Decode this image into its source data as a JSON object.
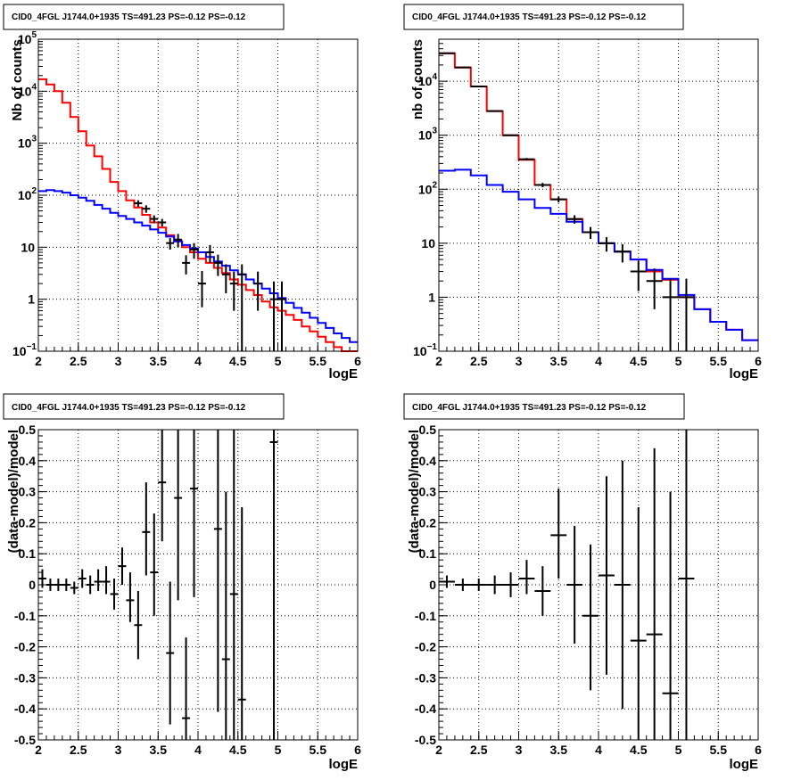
{
  "chart_data": [
    {
      "type": "line",
      "title": "CID0_4FGL J1744.0+1935 TS=491.23 PS=-0.12 PS=-0.12",
      "xlabel": "logE",
      "ylabel": "Nb of counts",
      "xlim": [
        2,
        6
      ],
      "ylim": [
        0.1,
        100000
      ],
      "yscale": "log",
      "grid": true,
      "xticks": [
        "2",
        "2.5",
        "3",
        "3.5",
        "4",
        "4.5",
        "5",
        "5.5",
        "6"
      ],
      "yticks": [
        {
          "v": 0.1,
          "t": "10",
          "sup": "−1"
        },
        {
          "v": 1,
          "t": "1"
        },
        {
          "v": 10,
          "t": "10"
        },
        {
          "v": 100,
          "t": "10",
          "sup": "2"
        },
        {
          "v": 1000,
          "t": "10",
          "sup": "3"
        },
        {
          "v": 10000,
          "t": "10",
          "sup": "4"
        },
        {
          "v": 100000,
          "t": "10",
          "sup": "5"
        }
      ],
      "bin_edges": [
        2.0,
        2.1,
        2.2,
        2.3,
        2.4,
        2.5,
        2.6,
        2.7,
        2.8,
        2.9,
        3.0,
        3.1,
        3.2,
        3.3,
        3.4,
        3.5,
        3.6,
        3.7,
        3.8,
        3.9,
        4.0,
        4.1,
        4.2,
        4.3,
        4.4,
        4.5,
        4.6,
        4.7,
        4.8,
        4.9,
        5.0,
        5.1,
        5.2,
        5.3,
        5.4,
        5.5,
        5.6,
        5.7,
        5.8,
        5.9,
        6.0
      ],
      "series": [
        {
          "color": "#ff0000",
          "kind": "hist",
          "values": [
            17000,
            13500,
            10000,
            6000,
            3200,
            1700,
            900,
            560,
            320,
            180,
            120,
            80,
            58,
            42,
            30,
            24,
            17,
            13,
            10,
            8,
            6,
            5,
            4,
            3.2,
            2.4,
            1.9,
            1.5,
            1.2,
            0.9,
            0.7,
            0.6,
            0.5,
            0.4,
            0.3,
            0.24,
            0.19,
            0.15,
            0.12,
            0.1,
            0.1
          ]
        },
        {
          "color": "#0000ff",
          "kind": "hist",
          "values": [
            120,
            125,
            120,
            112,
            100,
            90,
            78,
            65,
            55,
            46,
            40,
            35,
            30,
            26,
            22,
            19,
            16,
            13,
            11,
            9.5,
            8,
            6.5,
            5.3,
            4.4,
            3.6,
            3,
            2.4,
            2,
            1.6,
            1.3,
            1.05,
            0.85,
            0.68,
            0.55,
            0.44,
            0.35,
            0.28,
            0.22,
            0.18,
            0.15
          ]
        },
        {
          "color": "#000000",
          "kind": "points",
          "points": [
            {
              "x": 3.25,
              "y": 70,
              "xe": 0.05,
              "lo": 60,
              "hi": 80
            },
            {
              "x": 3.35,
              "y": 55,
              "xe": 0.05,
              "lo": 46,
              "hi": 64
            },
            {
              "x": 3.45,
              "y": 35,
              "xe": 0.05,
              "lo": 29,
              "hi": 41
            },
            {
              "x": 3.55,
              "y": 30,
              "xe": 0.05,
              "lo": 25,
              "hi": 35
            },
            {
              "x": 3.65,
              "y": 12,
              "xe": 0.05,
              "lo": 9,
              "hi": 15
            },
            {
              "x": 3.75,
              "y": 14,
              "xe": 0.05,
              "lo": 10,
              "hi": 18
            },
            {
              "x": 3.85,
              "y": 5,
              "xe": 0.05,
              "lo": 3,
              "hi": 7
            },
            {
              "x": 3.95,
              "y": 9,
              "xe": 0.05,
              "lo": 6,
              "hi": 12
            },
            {
              "x": 4.05,
              "y": 2,
              "xe": 0.05,
              "lo": 0.7,
              "hi": 3.5
            },
            {
              "x": 4.15,
              "y": 8,
              "xe": 0.05,
              "lo": 5,
              "hi": 11
            },
            {
              "x": 4.25,
              "y": 5,
              "xe": 0.05,
              "lo": 2.8,
              "hi": 7.2
            },
            {
              "x": 4.35,
              "y": 3,
              "xe": 0.05,
              "lo": 1.3,
              "hi": 4.7
            },
            {
              "x": 4.45,
              "y": 2,
              "xe": 0.05,
              "lo": 0.6,
              "hi": 3.4
            },
            {
              "x": 4.55,
              "y": 3,
              "xe": 0.05,
              "lo": 0.1,
              "hi": 4.7
            },
            {
              "x": 4.75,
              "y": 2,
              "xe": 0.05,
              "lo": 0.6,
              "hi": 3.4
            },
            {
              "x": 4.95,
              "y": 1,
              "xe": 0.05,
              "lo": 0.1,
              "hi": 2.2
            },
            {
              "x": 5.05,
              "y": 1,
              "xe": 0.05,
              "lo": 0.1,
              "hi": 2.2
            }
          ]
        }
      ]
    },
    {
      "type": "line",
      "title": "CID0_4FGL J1744.0+1935 TS=491.23 PS=-0.12 PS=-0.12",
      "xlabel": "logE",
      "ylabel": "nb of counts",
      "xlim": [
        2,
        6
      ],
      "ylim": [
        0.1,
        60000
      ],
      "yscale": "log",
      "grid": true,
      "xticks": [
        "2",
        "2.5",
        "3",
        "3.5",
        "4",
        "4.5",
        "5",
        "5.5",
        "6"
      ],
      "yticks": [
        {
          "v": 0.1,
          "t": "10",
          "sup": "−1"
        },
        {
          "v": 1,
          "t": "1"
        },
        {
          "v": 10,
          "t": "10"
        },
        {
          "v": 100,
          "t": "10",
          "sup": "2"
        },
        {
          "v": 1000,
          "t": "10",
          "sup": "3"
        },
        {
          "v": 10000,
          "t": "10",
          "sup": "4"
        }
      ],
      "bin_edges": [
        2.0,
        2.2,
        2.4,
        2.6,
        2.8,
        3.0,
        3.2,
        3.4,
        3.6,
        3.8,
        4.0,
        4.2,
        4.4,
        4.6,
        4.8,
        5.0,
        5.2,
        5.4,
        5.6,
        5.8,
        6.0
      ],
      "series": [
        {
          "color": "#ff0000",
          "kind": "hist",
          "values": [
            33000,
            18000,
            8000,
            2800,
            1000,
            350,
            120,
            65,
            28,
            16,
            10,
            7,
            5,
            3,
            2.1,
            1,
            0.6,
            0.35,
            0.25,
            0.16
          ]
        },
        {
          "color": "#0000ff",
          "kind": "hist",
          "values": [
            220,
            230,
            180,
            120,
            90,
            65,
            45,
            35,
            25,
            16,
            10,
            7,
            5,
            3.2,
            2.2,
            1.1,
            0.6,
            0.35,
            0.25,
            0.16
          ]
        },
        {
          "color": "#000000",
          "kind": "points",
          "points": [
            {
              "x": 2.1,
              "y": 33000,
              "xe": 0.1,
              "lo": 32800,
              "hi": 33200
            },
            {
              "x": 2.3,
              "y": 18000,
              "xe": 0.1,
              "lo": 17860,
              "hi": 18140
            },
            {
              "x": 2.5,
              "y": 8000,
              "xe": 0.1,
              "lo": 7910,
              "hi": 8090
            },
            {
              "x": 2.7,
              "y": 2800,
              "xe": 0.1,
              "lo": 2750,
              "hi": 2850
            },
            {
              "x": 2.9,
              "y": 1000,
              "xe": 0.1,
              "lo": 970,
              "hi": 1030
            },
            {
              "x": 3.1,
              "y": 360,
              "xe": 0.1,
              "lo": 341,
              "hi": 379
            },
            {
              "x": 3.3,
              "y": 120,
              "xe": 0.1,
              "lo": 109,
              "hi": 131
            },
            {
              "x": 3.5,
              "y": 65,
              "xe": 0.1,
              "lo": 57,
              "hi": 73
            },
            {
              "x": 3.7,
              "y": 28,
              "xe": 0.1,
              "lo": 23,
              "hi": 33
            },
            {
              "x": 3.9,
              "y": 16,
              "xe": 0.1,
              "lo": 12,
              "hi": 20
            },
            {
              "x": 4.1,
              "y": 10,
              "xe": 0.1,
              "lo": 7,
              "hi": 13
            },
            {
              "x": 4.3,
              "y": 7,
              "xe": 0.1,
              "lo": 4.4,
              "hi": 9.6
            },
            {
              "x": 4.5,
              "y": 3,
              "xe": 0.1,
              "lo": 1.3,
              "hi": 4.7
            },
            {
              "x": 4.7,
              "y": 2,
              "xe": 0.1,
              "lo": 0.6,
              "hi": 3.4
            },
            {
              "x": 4.9,
              "y": 1,
              "xe": 0.1,
              "lo": 0.1,
              "hi": 2.2
            },
            {
              "x": 5.1,
              "y": 1,
              "xe": 0.1,
              "lo": 0.1,
              "hi": 2.2
            }
          ]
        }
      ]
    },
    {
      "type": "scatter",
      "title": "CID0_4FGL J1744.0+1935 TS=491.23 PS=-0.12 PS=-0.12",
      "xlabel": "logE",
      "ylabel": "(data-model)/model",
      "xlim": [
        2,
        6
      ],
      "ylim": [
        -0.5,
        0.5
      ],
      "grid": true,
      "xticks": [
        "2",
        "2.5",
        "3",
        "3.5",
        "4",
        "4.5",
        "5",
        "5.5",
        "6"
      ],
      "yticks": [
        "-0.5",
        "-0.4",
        "-0.3",
        "-0.2",
        "-0.1",
        "0",
        "0.1",
        "0.2",
        "0.3",
        "0.4",
        "0.5"
      ],
      "points": [
        {
          "x": 2.05,
          "y": 0.02,
          "xe": 0.05,
          "lo": -0.01,
          "hi": 0.05
        },
        {
          "x": 2.15,
          "y": 0.0,
          "xe": 0.05,
          "lo": -0.02,
          "hi": 0.02
        },
        {
          "x": 2.25,
          "y": 0.0,
          "xe": 0.05,
          "lo": -0.02,
          "hi": 0.02
        },
        {
          "x": 2.35,
          "y": 0.0,
          "xe": 0.05,
          "lo": -0.02,
          "hi": 0.02
        },
        {
          "x": 2.45,
          "y": -0.01,
          "xe": 0.05,
          "lo": -0.03,
          "hi": 0.01
        },
        {
          "x": 2.55,
          "y": 0.02,
          "xe": 0.05,
          "lo": -0.01,
          "hi": 0.05
        },
        {
          "x": 2.65,
          "y": 0.0,
          "xe": 0.05,
          "lo": -0.03,
          "hi": 0.03
        },
        {
          "x": 2.75,
          "y": 0.01,
          "xe": 0.05,
          "lo": -0.02,
          "hi": 0.05
        },
        {
          "x": 2.85,
          "y": 0.01,
          "xe": 0.05,
          "lo": -0.03,
          "hi": 0.06
        },
        {
          "x": 2.95,
          "y": -0.03,
          "xe": 0.05,
          "lo": -0.08,
          "hi": 0.02
        },
        {
          "x": 3.05,
          "y": 0.06,
          "xe": 0.05,
          "lo": 0.0,
          "hi": 0.12
        },
        {
          "x": 3.15,
          "y": -0.05,
          "xe": 0.05,
          "lo": -0.12,
          "hi": 0.04
        },
        {
          "x": 3.25,
          "y": -0.13,
          "xe": 0.05,
          "lo": -0.24,
          "hi": -0.02
        },
        {
          "x": 3.35,
          "y": 0.17,
          "xe": 0.05,
          "lo": 0.03,
          "hi": 0.33
        },
        {
          "x": 3.45,
          "y": 0.04,
          "xe": 0.05,
          "lo": -0.1,
          "hi": 0.23
        },
        {
          "x": 3.55,
          "y": 0.33,
          "xe": 0.05,
          "lo": 0.14,
          "hi": 0.5
        },
        {
          "x": 3.65,
          "y": -0.22,
          "xe": 0.05,
          "lo": -0.45,
          "hi": 0.01
        },
        {
          "x": 3.75,
          "y": 0.28,
          "xe": 0.05,
          "lo": -0.05,
          "hi": 0.5
        },
        {
          "x": 3.85,
          "y": -0.43,
          "xe": 0.05,
          "lo": -0.5,
          "hi": -0.17
        },
        {
          "x": 3.95,
          "y": 0.31,
          "xe": 0.05,
          "lo": -0.04,
          "hi": 0.5
        },
        {
          "x": 4.25,
          "y": 0.18,
          "xe": 0.05,
          "lo": -0.41,
          "hi": 0.5
        },
        {
          "x": 4.35,
          "y": -0.24,
          "xe": 0.05,
          "lo": -0.5,
          "hi": 0.3
        },
        {
          "x": 4.45,
          "y": -0.03,
          "xe": 0.05,
          "lo": -0.5,
          "hi": 0.5
        },
        {
          "x": 4.55,
          "y": -0.37,
          "xe": 0.05,
          "lo": -0.5,
          "hi": 0.25
        },
        {
          "x": 4.95,
          "y": 0.46,
          "xe": 0.05,
          "lo": -0.5,
          "hi": 0.5
        }
      ]
    },
    {
      "type": "scatter",
      "title": "CID0_4FGL J1744.0+1935 TS=491.23 PS=-0.12 PS=-0.12",
      "xlabel": "logE",
      "ylabel": "(data-model)/model",
      "xlim": [
        2,
        6
      ],
      "ylim": [
        -0.5,
        0.5
      ],
      "grid": true,
      "xticks": [
        "2",
        "2.5",
        "3",
        "3.5",
        "4",
        "4.5",
        "5",
        "5.5",
        "6"
      ],
      "yticks": [
        "-0.5",
        "-0.4",
        "-0.3",
        "-0.2",
        "-0.1",
        "0",
        "0.1",
        "0.2",
        "0.3",
        "0.4",
        "0.5"
      ],
      "points": [
        {
          "x": 2.1,
          "y": 0.01,
          "xe": 0.1,
          "lo": -0.01,
          "hi": 0.03
        },
        {
          "x": 2.3,
          "y": 0.0,
          "xe": 0.1,
          "lo": -0.02,
          "hi": 0.02
        },
        {
          "x": 2.5,
          "y": 0.0,
          "xe": 0.1,
          "lo": -0.02,
          "hi": 0.02
        },
        {
          "x": 2.7,
          "y": 0.0,
          "xe": 0.1,
          "lo": -0.03,
          "hi": 0.03
        },
        {
          "x": 2.9,
          "y": 0.0,
          "xe": 0.1,
          "lo": -0.04,
          "hi": 0.04
        },
        {
          "x": 3.1,
          "y": 0.02,
          "xe": 0.1,
          "lo": -0.03,
          "hi": 0.08
        },
        {
          "x": 3.3,
          "y": -0.02,
          "xe": 0.1,
          "lo": -0.1,
          "hi": 0.06
        },
        {
          "x": 3.5,
          "y": 0.16,
          "xe": 0.1,
          "lo": 0.02,
          "hi": 0.31
        },
        {
          "x": 3.7,
          "y": 0.0,
          "xe": 0.1,
          "lo": -0.19,
          "hi": 0.19
        },
        {
          "x": 3.9,
          "y": -0.1,
          "xe": 0.1,
          "lo": -0.34,
          "hi": 0.13
        },
        {
          "x": 4.1,
          "y": 0.03,
          "xe": 0.1,
          "lo": -0.29,
          "hi": 0.35
        },
        {
          "x": 4.3,
          "y": 0.0,
          "xe": 0.1,
          "lo": -0.4,
          "hi": 0.4
        },
        {
          "x": 4.5,
          "y": -0.18,
          "xe": 0.1,
          "lo": -0.5,
          "hi": 0.25
        },
        {
          "x": 4.7,
          "y": -0.16,
          "xe": 0.1,
          "lo": -0.5,
          "hi": 0.44
        },
        {
          "x": 4.9,
          "y": -0.35,
          "xe": 0.1,
          "lo": -0.5,
          "hi": 0.3
        },
        {
          "x": 5.1,
          "y": 0.02,
          "xe": 0.1,
          "lo": -0.5,
          "hi": 0.5
        }
      ]
    }
  ]
}
